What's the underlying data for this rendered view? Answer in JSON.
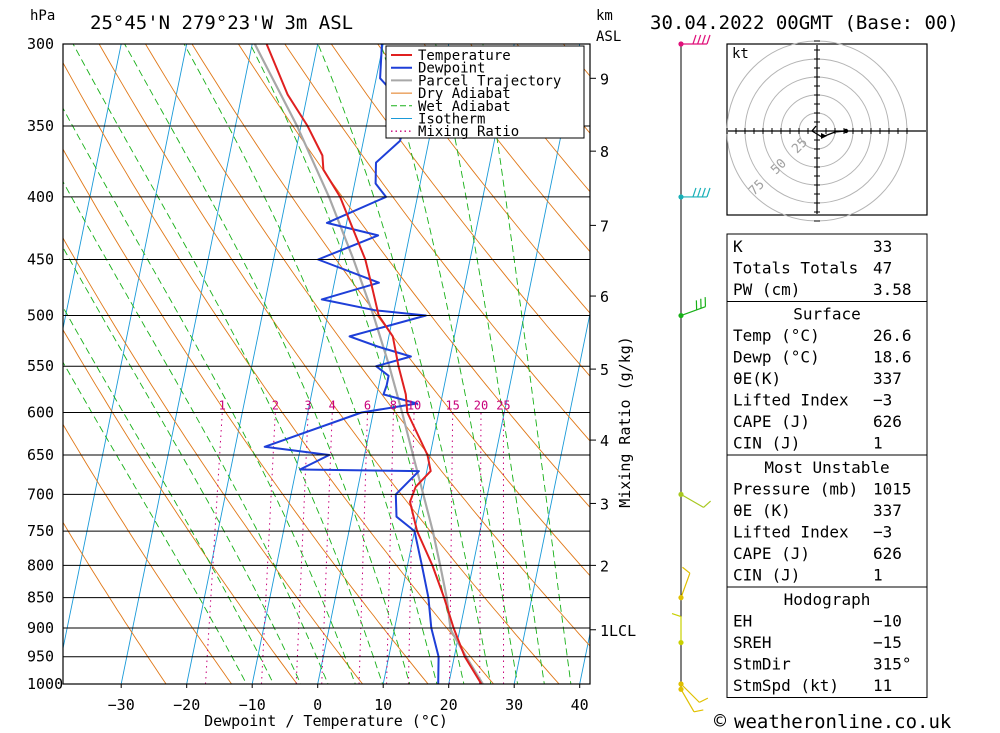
{
  "header": {
    "pressure_unit": "hPa",
    "location": "25°45'N  279°23'W  3m  ASL",
    "km_label_1": "km",
    "km_label_2": "ASL",
    "datetime": "30.04.2022  00GMT  (Base: 00)"
  },
  "chart_data": {
    "type": "line",
    "title": "Skew-T log-P sounding",
    "xlabel": "Dewpoint / Temperature (°C)",
    "ylabel": "hPa",
    "secondary_ylabel": "Mixing Ratio (g/kg)",
    "x_ticks": [
      -30,
      -20,
      -10,
      0,
      10,
      20,
      30,
      40
    ],
    "pressure_levels": [
      300,
      350,
      400,
      450,
      500,
      550,
      600,
      650,
      700,
      750,
      800,
      850,
      900,
      950,
      1000
    ],
    "height_ticks_km": [
      {
        "label": "9",
        "p": 320
      },
      {
        "label": "8",
        "p": 367
      },
      {
        "label": "7",
        "p": 422
      },
      {
        "label": "6",
        "p": 482
      },
      {
        "label": "5",
        "p": 553
      },
      {
        "label": "4",
        "p": 632
      },
      {
        "label": "3",
        "p": 712
      },
      {
        "label": "2",
        "p": 800
      },
      {
        "label": "1LCL",
        "p": 903
      }
    ],
    "mixing_ratio_labels": [
      "1",
      "2",
      "3",
      "4",
      "6",
      "8",
      "10",
      "15",
      "20",
      "25"
    ],
    "mixing_ratio_values": [
      1,
      2,
      3,
      4,
      6,
      8,
      10,
      15,
      20,
      25
    ],
    "legend": [
      "Temperature",
      "Dewpoint",
      "Parcel Trajectory",
      "Dry Adiabat",
      "Wet Adiabat",
      "Isotherm",
      "Mixing Ratio"
    ],
    "legend_position": "top-right",
    "series": [
      {
        "name": "Temperature",
        "points": [
          [
            1015,
            26.6
          ],
          [
            1000,
            25.0
          ],
          [
            950,
            21.6
          ],
          [
            900,
            19.0
          ],
          [
            850,
            16.6
          ],
          [
            800,
            13.8
          ],
          [
            750,
            10.4
          ],
          [
            710,
            8.4
          ],
          [
            690,
            8.8
          ],
          [
            670,
            10.6
          ],
          [
            650,
            9.6
          ],
          [
            600,
            5.2
          ],
          [
            580,
            4.4
          ],
          [
            550,
            2.4
          ],
          [
            520,
            0.6
          ],
          [
            500,
            -2.2
          ],
          [
            470,
            -4.4
          ],
          [
            450,
            -6.0
          ],
          [
            420,
            -9.4
          ],
          [
            400,
            -11.8
          ],
          [
            380,
            -15.2
          ],
          [
            370,
            -15.8
          ],
          [
            350,
            -19.0
          ],
          [
            330,
            -23.0
          ],
          [
            300,
            -27.8
          ]
        ]
      },
      {
        "name": "Dewpoint",
        "points": [
          [
            1015,
            18.6
          ],
          [
            1000,
            18.4
          ],
          [
            950,
            17.6
          ],
          [
            900,
            15.6
          ],
          [
            850,
            14.2
          ],
          [
            800,
            12.2
          ],
          [
            750,
            10.0
          ],
          [
            730,
            6.8
          ],
          [
            700,
            6.0
          ],
          [
            670,
            8.8
          ],
          [
            668,
            -9.4
          ],
          [
            650,
            -5.4
          ],
          [
            640,
            -15.5
          ],
          [
            600,
            -1.8
          ],
          [
            590,
            6.4
          ],
          [
            580,
            1.0
          ],
          [
            570,
            1.2
          ],
          [
            560,
            1.2
          ],
          [
            550,
            -1.0
          ],
          [
            540,
            4.0
          ],
          [
            530,
            -1.4
          ],
          [
            520,
            -6.0
          ],
          [
            500,
            5.0
          ],
          [
            495,
            -3.0
          ],
          [
            485,
            -11.4
          ],
          [
            470,
            -3.2
          ],
          [
            450,
            -13.2
          ],
          [
            430,
            -4.8
          ],
          [
            420,
            -13.0
          ],
          [
            400,
            -4.8
          ],
          [
            390,
            -6.8
          ],
          [
            375,
            -7.4
          ],
          [
            360,
            -4.4
          ],
          [
            340,
            -4.0
          ],
          [
            320,
            -9.4
          ],
          [
            300,
            -10.2
          ]
        ]
      },
      {
        "name": "Parcel Trajectory",
        "points": [
          [
            1015,
            26.6
          ],
          [
            1000,
            25.2
          ],
          [
            950,
            21.8
          ],
          [
            903,
            18.6
          ],
          [
            850,
            17.0
          ],
          [
            800,
            15.0
          ],
          [
            750,
            12.8
          ],
          [
            700,
            10.2
          ],
          [
            650,
            7.4
          ],
          [
            600,
            4.4
          ],
          [
            550,
            1.0
          ],
          [
            500,
            -3.0
          ],
          [
            450,
            -7.8
          ],
          [
            400,
            -13.5
          ],
          [
            350,
            -20.6
          ],
          [
            300,
            -29.6
          ]
        ]
      }
    ],
    "wind_barbs": [
      {
        "p": 300,
        "dir": 270,
        "speed_kt": 40
      },
      {
        "p": 400,
        "dir": 270,
        "speed_kt": 35
      },
      {
        "p": 500,
        "dir": 250,
        "speed_kt": 25
      },
      {
        "p": 700,
        "dir": 300,
        "speed_kt": 10
      },
      {
        "p": 850,
        "dir": 200,
        "speed_kt": 10
      },
      {
        "p": 925,
        "dir": 180,
        "speed_kt": 5
      },
      {
        "p": 1000,
        "dir": 315,
        "speed_kt": 11
      },
      {
        "p": 1010,
        "dir": 330,
        "speed_kt": 10
      }
    ],
    "hodograph": {
      "unit": "kt",
      "ring_labels": [
        "25",
        "50",
        "75"
      ],
      "ring_values_kt": [
        25,
        50,
        75
      ]
    }
  },
  "indices": [
    {
      "label": "K",
      "value": "33"
    },
    {
      "label": "Totals Totals",
      "value": "47"
    },
    {
      "label": "PW (cm)",
      "value": "3.58"
    }
  ],
  "surface": {
    "title": "Surface",
    "rows": [
      {
        "label": "Temp (°C)",
        "value": "26.6"
      },
      {
        "label": "Dewp (°C)",
        "value": "18.6"
      },
      {
        "label": "θE(K)",
        "value": "337"
      },
      {
        "label": "Lifted Index",
        "value": "−3"
      },
      {
        "label": "CAPE (J)",
        "value": "626"
      },
      {
        "label": "CIN (J)",
        "value": "1"
      }
    ]
  },
  "most_unstable": {
    "title": "Most Unstable",
    "rows": [
      {
        "label": "Pressure (mb)",
        "value": "1015"
      },
      {
        "label": "θE (K)",
        "value": "337"
      },
      {
        "label": "Lifted Index",
        "value": "−3"
      },
      {
        "label": "CAPE (J)",
        "value": "626"
      },
      {
        "label": "CIN (J)",
        "value": "1"
      }
    ]
  },
  "hodograph_table": {
    "title": "Hodograph",
    "rows": [
      {
        "label": "EH",
        "value": "−10"
      },
      {
        "label": "SREH",
        "value": "−15"
      },
      {
        "label": "StmDir",
        "value": "315°"
      },
      {
        "label": "StmSpd (kt)",
        "value": "11"
      }
    ]
  },
  "footer": {
    "copyright_symbol": "©",
    "site": "weatheronline.co.uk"
  },
  "colors": {
    "temperature": "#e02020",
    "dewpoint": "#1e3fd8",
    "parcel": "#a8a8a8",
    "dry_adiabat": "#e07818",
    "wet_adiabat": "#18b018",
    "isotherm": "#1a9ad8",
    "mixing_ratio": "#c8007a"
  }
}
